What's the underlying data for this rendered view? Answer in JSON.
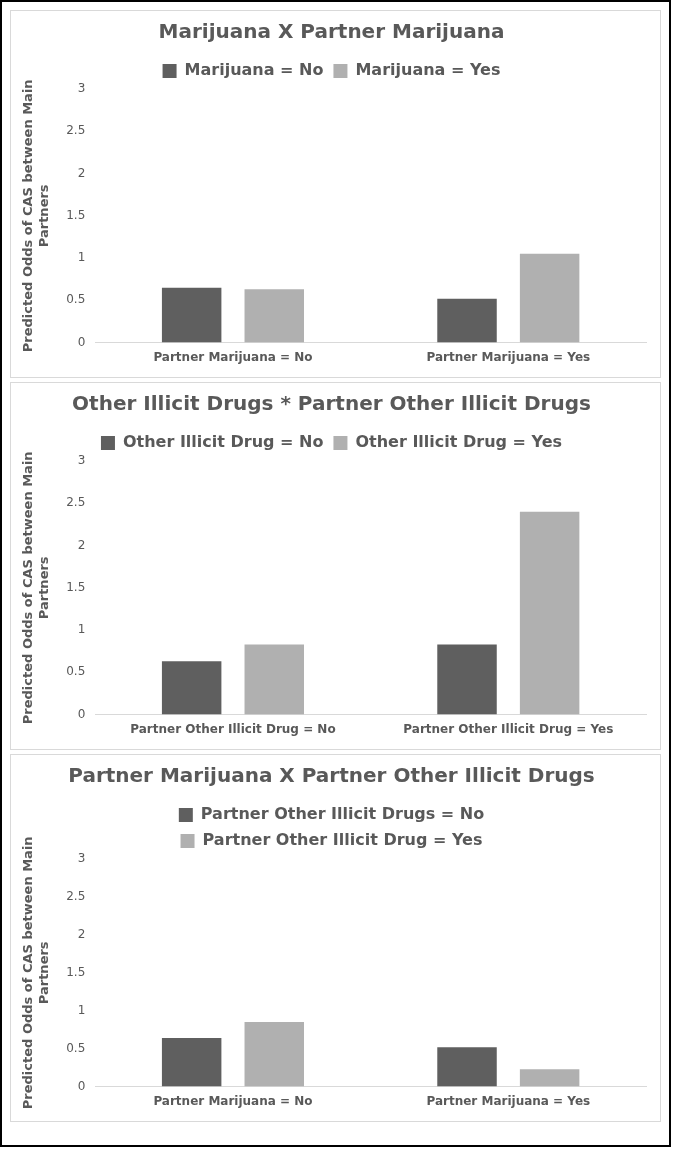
{
  "chart_data": [
    {
      "type": "bar",
      "title": "Marijuana X Partner Marijuana",
      "ylabel": "Predicted Odds of CAS between Main Partners",
      "categories": [
        "Partner Marijuana = No",
        "Partner Marijuana = Yes"
      ],
      "series": [
        {
          "name": "Marijuana = No",
          "color": "#5f5f5f",
          "values": [
            0.65,
            0.52
          ]
        },
        {
          "name": "Marijuana = Yes",
          "color": "#b0b0b0",
          "values": [
            0.63,
            1.05
          ]
        }
      ],
      "ylim": [
        0,
        3
      ],
      "yticks": [
        0,
        0.5,
        1,
        1.5,
        2,
        2.5,
        3
      ],
      "grid": false,
      "legend": "top"
    },
    {
      "type": "bar",
      "title": "Other Illicit Drugs * Partner Other Illicit Drugs",
      "ylabel": "Predicted Odds of CAS between Main Partners",
      "categories": [
        "Partner Other Illicit Drug = No",
        "Partner Other Illicit Drug = Yes"
      ],
      "series": [
        {
          "name": "Other Illicit Drug = No",
          "color": "#5f5f5f",
          "values": [
            0.63,
            0.83
          ]
        },
        {
          "name": "Other Illicit Drug = Yes",
          "color": "#b0b0b0",
          "values": [
            0.83,
            2.4
          ]
        }
      ],
      "ylim": [
        0,
        3
      ],
      "yticks": [
        0,
        0.5,
        1,
        1.5,
        2,
        2.5,
        3
      ],
      "grid": false,
      "legend": "top"
    },
    {
      "type": "bar",
      "title": "Partner Marijuana X Partner Other Illicit Drugs",
      "ylabel": "Predicted Odds of CAS between Main Partners",
      "categories": [
        "Partner Marijuana = No",
        "Partner Marijuana = Yes"
      ],
      "series": [
        {
          "name": "Partner Other Illicit Drugs = No",
          "color": "#5f5f5f",
          "values": [
            0.64,
            0.52
          ]
        },
        {
          "name": "Partner Other Illicit Drug = Yes",
          "color": "#b0b0b0",
          "values": [
            0.85,
            0.23
          ]
        }
      ],
      "ylim": [
        0,
        3
      ],
      "yticks": [
        0,
        0.5,
        1,
        1.5,
        2,
        2.5,
        3
      ],
      "grid": false,
      "legend": "top"
    }
  ]
}
